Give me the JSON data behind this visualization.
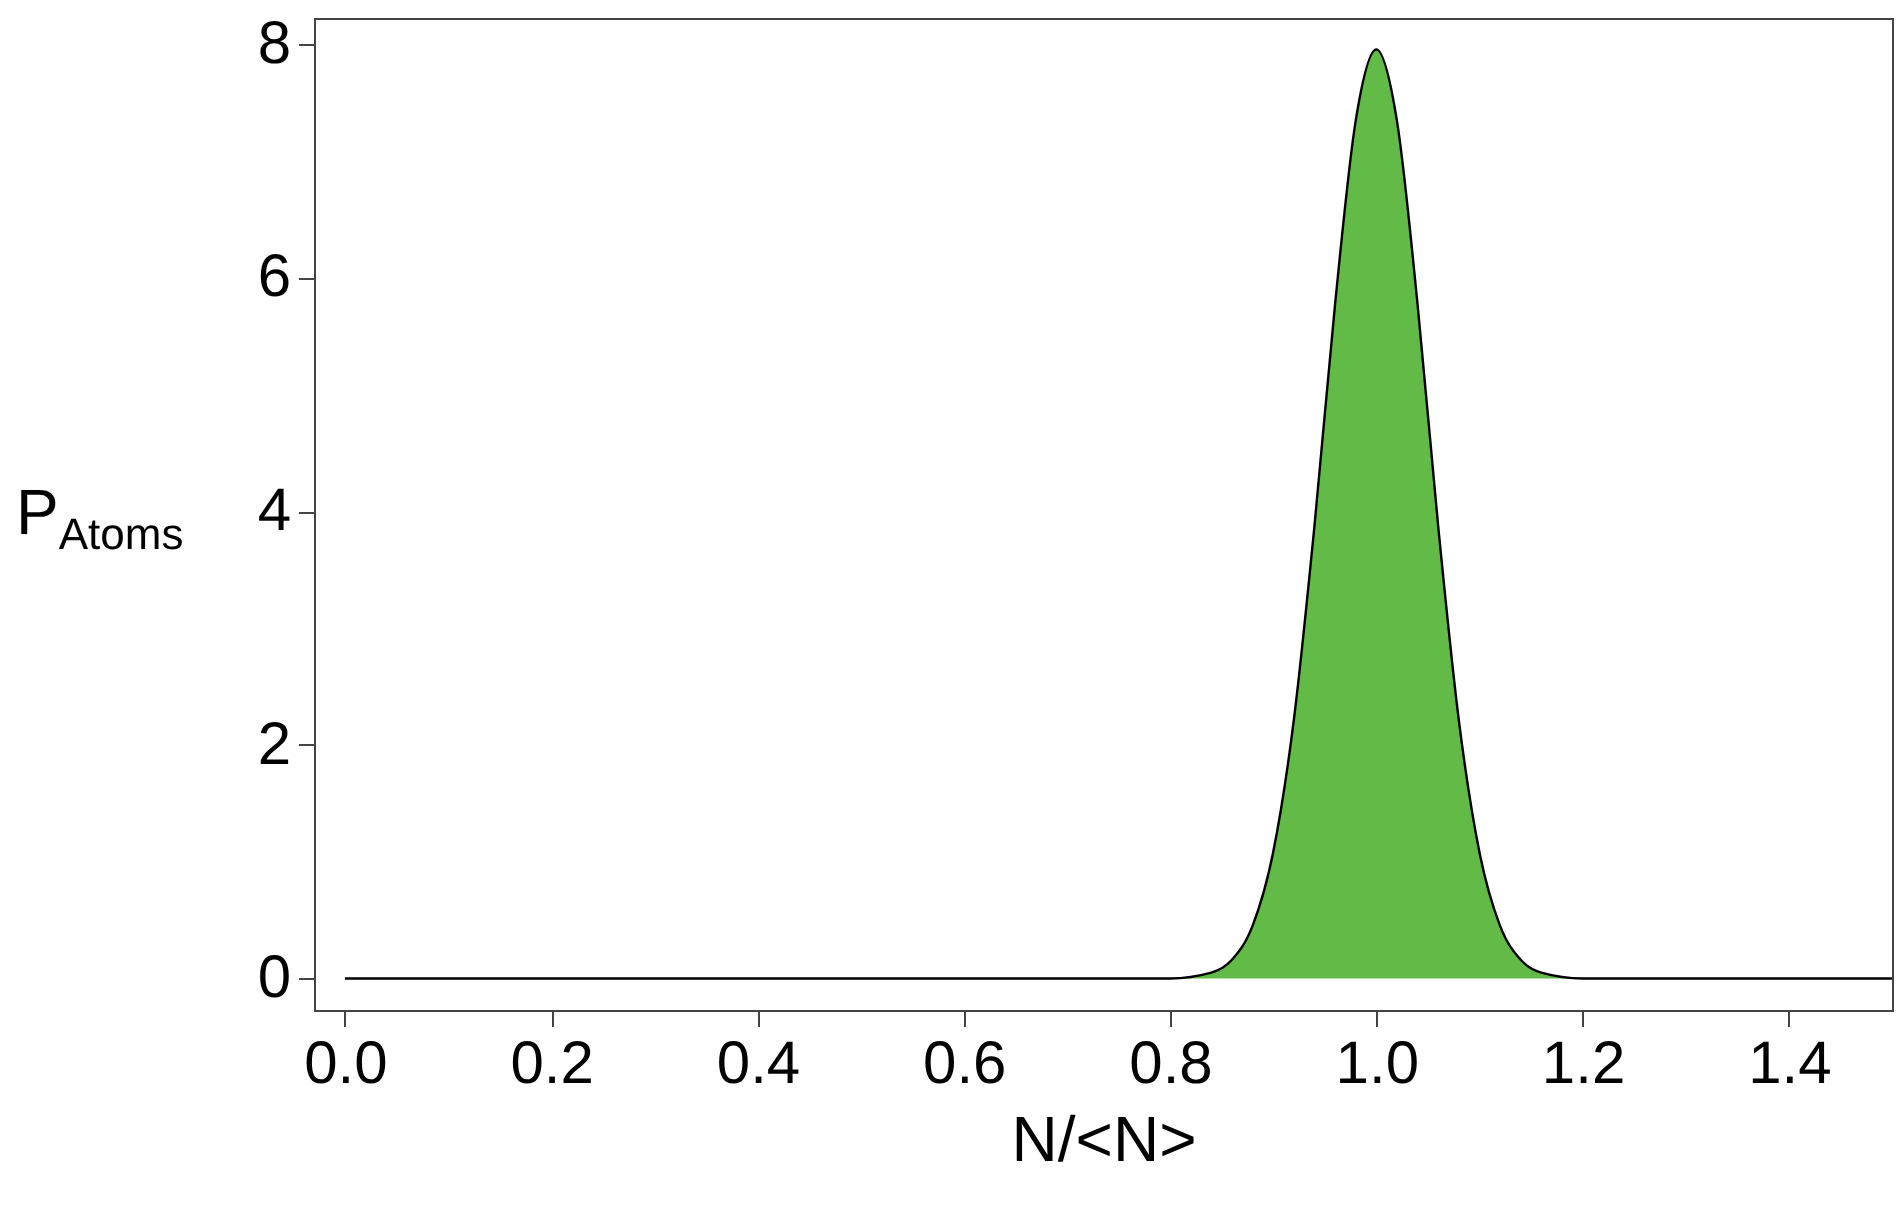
{
  "chart_data": {
    "type": "area",
    "xlabel": "N/<N>",
    "ylabel": "P$_{Atoms}$",
    "series": [
      {
        "color": "#62bb47",
        "x": [
          0,
          0.8,
          0.84,
          0.86,
          0.88,
          0.9,
          0.92,
          0.94,
          0.96,
          0.98,
          1.0,
          1.02,
          1.04,
          1.06,
          1.08,
          1.1,
          1.12,
          1.14,
          1.16,
          1.2,
          1.5
        ],
        "values": [
          0,
          0,
          0.05,
          0.16,
          0.45,
          1.08,
          2.21,
          3.87,
          5.77,
          7.34,
          7.95,
          7.34,
          5.77,
          3.87,
          2.21,
          1.08,
          0.45,
          0.16,
          0.05,
          0,
          0
        ]
      }
    ],
    "xlim": [
      -0.03,
      1.5
    ],
    "ylim": [
      -0.27,
      8.22
    ],
    "xticks": [
      {
        "value": 0,
        "label": "0.0"
      },
      0.2,
      0.4,
      0.6,
      0.8,
      {
        "value": 1,
        "label": "1.0"
      },
      1.2,
      1.4
    ],
    "yticks": [
      0,
      2,
      4,
      6,
      8
    ],
    "grid": false
  }
}
